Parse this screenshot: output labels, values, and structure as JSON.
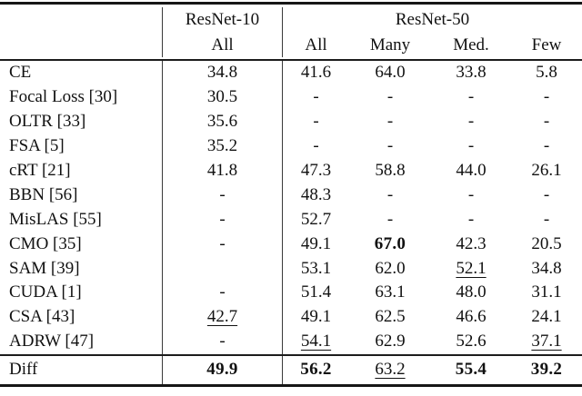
{
  "table": {
    "header": {
      "groups": [
        {
          "label": "ResNet-10",
          "subcols": [
            "All"
          ]
        },
        {
          "label": "ResNet-50",
          "subcols": [
            "All",
            "Many",
            "Med.",
            "Few"
          ]
        }
      ]
    },
    "rows": [
      {
        "label": "CE",
        "cells": [
          {
            "text": "34.8"
          },
          {
            "text": "41.6"
          },
          {
            "text": "64.0"
          },
          {
            "text": "33.8"
          },
          {
            "text": "5.8"
          }
        ]
      },
      {
        "label": "Focal Loss [30]",
        "cells": [
          {
            "text": "30.5"
          },
          {
            "text": "-"
          },
          {
            "text": "-"
          },
          {
            "text": "-"
          },
          {
            "text": "-"
          }
        ]
      },
      {
        "label": "OLTR [33]",
        "cells": [
          {
            "text": "35.6"
          },
          {
            "text": "-"
          },
          {
            "text": "-"
          },
          {
            "text": "-"
          },
          {
            "text": "-"
          }
        ]
      },
      {
        "label": "FSA [5]",
        "cells": [
          {
            "text": "35.2"
          },
          {
            "text": "-"
          },
          {
            "text": "-"
          },
          {
            "text": "-"
          },
          {
            "text": "-"
          }
        ]
      },
      {
        "label": "cRT [21]",
        "cells": [
          {
            "text": "41.8"
          },
          {
            "text": "47.3"
          },
          {
            "text": "58.8"
          },
          {
            "text": "44.0"
          },
          {
            "text": "26.1"
          }
        ]
      },
      {
        "label": "BBN [56]",
        "cells": [
          {
            "text": "-"
          },
          {
            "text": "48.3"
          },
          {
            "text": "-"
          },
          {
            "text": "-"
          },
          {
            "text": "-"
          }
        ]
      },
      {
        "label": "MisLAS [55]",
        "cells": [
          {
            "text": "-"
          },
          {
            "text": "52.7"
          },
          {
            "text": "-"
          },
          {
            "text": "-"
          },
          {
            "text": "-"
          }
        ]
      },
      {
        "label": "CMO [35]",
        "cells": [
          {
            "text": "-"
          },
          {
            "text": "49.1"
          },
          {
            "text": "67.0",
            "style": "bold"
          },
          {
            "text": "42.3"
          },
          {
            "text": "20.5"
          }
        ]
      },
      {
        "label": "SAM [39]",
        "cells": [
          {
            "text": ""
          },
          {
            "text": "53.1"
          },
          {
            "text": "62.0"
          },
          {
            "text": "52.1",
            "style": "underline"
          },
          {
            "text": "34.8"
          }
        ]
      },
      {
        "label": "CUDA [1]",
        "cells": [
          {
            "text": "-"
          },
          {
            "text": "51.4"
          },
          {
            "text": "63.1"
          },
          {
            "text": "48.0"
          },
          {
            "text": "31.1"
          }
        ]
      },
      {
        "label": "CSA [43]",
        "cells": [
          {
            "text": "42.7",
            "style": "underline"
          },
          {
            "text": "49.1"
          },
          {
            "text": "62.5"
          },
          {
            "text": "46.6"
          },
          {
            "text": "24.1"
          }
        ]
      },
      {
        "label": "ADRW [47]",
        "cells": [
          {
            "text": "-"
          },
          {
            "text": "54.1",
            "style": "underline"
          },
          {
            "text": "62.9"
          },
          {
            "text": "52.6"
          },
          {
            "text": "37.1",
            "style": "underline"
          }
        ]
      }
    ],
    "footer": {
      "label": "Diff",
      "cells": [
        {
          "text": "49.9",
          "style": "bold"
        },
        {
          "text": "56.2",
          "style": "bold"
        },
        {
          "text": "63.2",
          "style": "underline"
        },
        {
          "text": "55.4",
          "style": "bold"
        },
        {
          "text": "39.2",
          "style": "bold"
        }
      ]
    }
  }
}
